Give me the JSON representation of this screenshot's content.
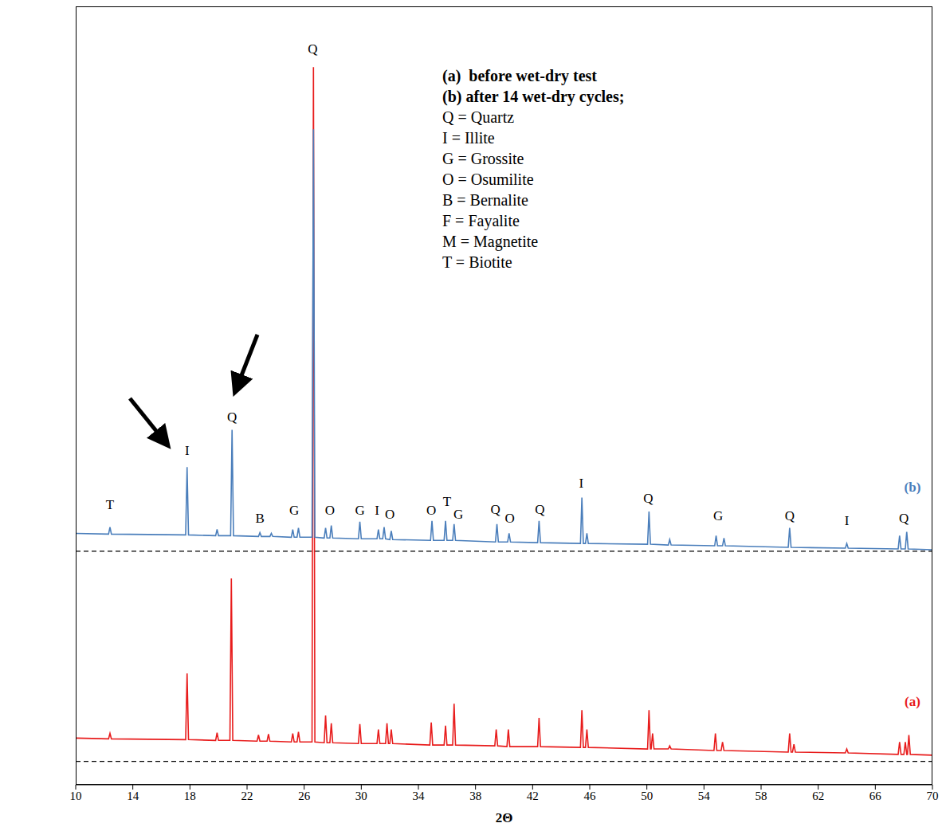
{
  "chart_data": {
    "type": "line",
    "x_label": "2Θ",
    "xlim": [
      10,
      70
    ],
    "xticks": [
      10,
      14,
      18,
      22,
      26,
      30,
      34,
      38,
      42,
      46,
      50,
      54,
      58,
      62,
      66,
      70
    ],
    "ylim": [
      0,
      100
    ],
    "tick_labels": "x",
    "grid": false,
    "key_text": [
      "(a)  before wet-dry test",
      "(b) after 14 wet-dry cycles;",
      "Q = Quartz",
      "I = Illite",
      "G = Grossite",
      "O = Osumilite",
      "B = Bernalite",
      "F = Fayalite",
      "M = Magnetite",
      "T = Biotite"
    ],
    "baselines": [
      3,
      30
    ],
    "series": [
      {
        "name": "(a)",
        "color": "#e81c1c",
        "label_at": [
          68.6,
          10.8
        ],
        "x": [
          10,
          12.3,
          12.4,
          12.5,
          17.7,
          17.8,
          17.9,
          19.8,
          19.9,
          20.0,
          20.8,
          20.9,
          21.0,
          22.7,
          22.8,
          22.9,
          23.4,
          23.5,
          23.6,
          25.1,
          25.2,
          25.3,
          25.5,
          25.6,
          25.7,
          26.55,
          26.65,
          26.75,
          27.4,
          27.5,
          27.6,
          27.8,
          27.9,
          28.0,
          29.8,
          29.9,
          30.0,
          31.1,
          31.2,
          31.3,
          31.7,
          31.8,
          31.9,
          32.0,
          32.1,
          32.2,
          34.8,
          34.9,
          35.0,
          35.8,
          35.9,
          36.0,
          36.4,
          36.5,
          36.6,
          39.35,
          39.45,
          39.55,
          40.2,
          40.3,
          40.4,
          42.35,
          42.45,
          42.55,
          45.35,
          45.45,
          45.55,
          45.7,
          45.8,
          45.9,
          50.05,
          50.15,
          50.25,
          50.3,
          50.4,
          50.5,
          51.5,
          51.6,
          51.7,
          54.7,
          54.8,
          54.9,
          55.2,
          55.3,
          55.4,
          59.9,
          60.0,
          60.1,
          60.2,
          60.3,
          60.4,
          63.9,
          64.0,
          64.1,
          67.6,
          67.7,
          67.8,
          68.0,
          68.1,
          68.2,
          68.25,
          68.35,
          68.45,
          70
        ],
        "values": [
          6.0,
          5.9,
          6.6,
          5.9,
          5.8,
          14.3,
          5.8,
          5.7,
          6.7,
          5.7,
          5.7,
          26.5,
          5.7,
          5.6,
          6.4,
          5.6,
          5.6,
          6.5,
          5.6,
          5.5,
          6.6,
          5.5,
          5.5,
          6.8,
          5.5,
          5.5,
          92.2,
          5.5,
          5.4,
          8.9,
          5.4,
          5.4,
          7.9,
          5.4,
          5.3,
          7.8,
          5.3,
          5.3,
          7.1,
          5.3,
          5.3,
          7.9,
          5.3,
          5.3,
          7.1,
          5.3,
          5.1,
          8.0,
          5.1,
          5.1,
          7.6,
          5.1,
          5.1,
          10.4,
          5.1,
          5.0,
          7.1,
          5.0,
          4.9,
          7.1,
          4.9,
          4.9,
          8.6,
          4.9,
          4.8,
          9.6,
          4.8,
          4.8,
          7.1,
          4.8,
          4.6,
          9.6,
          4.6,
          4.6,
          6.6,
          4.6,
          4.6,
          5.0,
          4.6,
          4.4,
          6.6,
          4.4,
          4.4,
          5.5,
          4.4,
          4.2,
          6.6,
          4.2,
          4.2,
          5.2,
          4.2,
          4.1,
          4.6,
          4.1,
          3.9,
          5.5,
          3.9,
          3.9,
          5.5,
          3.9,
          3.9,
          6.4,
          3.9,
          3.8
        ]
      },
      {
        "name": "(b)",
        "color": "#4a7ebb",
        "label_at": [
          68.6,
          38.3
        ],
        "x": [
          10,
          12.3,
          12.4,
          12.5,
          17.7,
          17.8,
          17.9,
          19.8,
          19.9,
          20.0,
          20.85,
          20.95,
          21.05,
          22.8,
          22.9,
          23.0,
          23.6,
          23.7,
          23.8,
          25.1,
          25.2,
          25.3,
          25.5,
          25.6,
          25.7,
          26.55,
          26.65,
          26.75,
          27.4,
          27.5,
          27.6,
          27.8,
          27.9,
          28.0,
          29.8,
          29.9,
          30.0,
          31.1,
          31.2,
          31.3,
          31.5,
          31.6,
          31.7,
          32.0,
          32.1,
          32.2,
          34.85,
          34.95,
          35.05,
          35.8,
          35.9,
          36.0,
          36.4,
          36.5,
          36.6,
          39.4,
          39.5,
          39.6,
          40.25,
          40.35,
          40.45,
          42.35,
          42.45,
          42.55,
          45.35,
          45.45,
          45.55,
          45.7,
          45.8,
          45.9,
          50.05,
          50.15,
          50.25,
          51.5,
          51.6,
          51.7,
          54.75,
          54.85,
          54.95,
          55.3,
          55.4,
          55.5,
          59.9,
          60.0,
          60.1,
          63.9,
          64.0,
          64.1,
          67.6,
          67.7,
          67.8,
          68.1,
          68.2,
          68.3,
          70
        ],
        "values": [
          32.3,
          32.2,
          33.1,
          32.2,
          32.1,
          40.8,
          32.1,
          32.0,
          32.8,
          32.0,
          32.0,
          45.6,
          32.0,
          31.9,
          32.4,
          31.9,
          31.9,
          32.3,
          31.9,
          31.8,
          32.8,
          31.8,
          31.8,
          33.0,
          31.8,
          31.8,
          84.2,
          31.8,
          31.7,
          33.0,
          31.7,
          31.7,
          33.3,
          31.7,
          31.6,
          33.8,
          31.6,
          31.6,
          32.8,
          31.6,
          31.6,
          33.1,
          31.6,
          31.5,
          32.6,
          31.5,
          31.4,
          33.9,
          31.4,
          31.4,
          33.9,
          31.4,
          31.4,
          33.5,
          31.4,
          31.2,
          33.5,
          31.2,
          31.2,
          32.3,
          31.2,
          31.1,
          33.9,
          31.1,
          31.0,
          36.9,
          31.0,
          31.0,
          32.3,
          31.0,
          30.9,
          35.1,
          30.9,
          30.8,
          31.5,
          30.8,
          30.7,
          32.0,
          30.7,
          30.7,
          31.7,
          30.7,
          30.5,
          33.0,
          30.5,
          30.4,
          31.0,
          30.4,
          30.3,
          32.0,
          30.3,
          30.3,
          32.5,
          30.3,
          30.2
        ]
      }
    ],
    "annotations": [
      {
        "text": "Q",
        "x": 26.6,
        "y": 94.6
      },
      {
        "text": "T",
        "x": 12.4,
        "y": 36.0
      },
      {
        "text": "I",
        "x": 17.8,
        "y": 43.0
      },
      {
        "text": "Q",
        "x": 20.95,
        "y": 47.3
      },
      {
        "text": "B",
        "x": 22.9,
        "y": 34.3
      },
      {
        "text": "G",
        "x": 25.3,
        "y": 35.3
      },
      {
        "text": "O",
        "x": 27.8,
        "y": 35.3
      },
      {
        "text": "G",
        "x": 29.9,
        "y": 35.3
      },
      {
        "text": "I",
        "x": 31.1,
        "y": 35.3
      },
      {
        "text": "O",
        "x": 32.0,
        "y": 34.8
      },
      {
        "text": "O",
        "x": 34.9,
        "y": 35.3
      },
      {
        "text": "T",
        "x": 36.0,
        "y": 36.4
      },
      {
        "text": "G",
        "x": 36.8,
        "y": 34.8
      },
      {
        "text": "Q",
        "x": 39.4,
        "y": 35.4
      },
      {
        "text": "O",
        "x": 40.4,
        "y": 34.3
      },
      {
        "text": "Q",
        "x": 42.5,
        "y": 35.4
      },
      {
        "text": "I",
        "x": 45.4,
        "y": 38.8
      },
      {
        "text": "Q",
        "x": 50.1,
        "y": 36.9
      },
      {
        "text": "G",
        "x": 55.0,
        "y": 34.6
      },
      {
        "text": "Q",
        "x": 60.0,
        "y": 34.6
      },
      {
        "text": "I",
        "x": 64.0,
        "y": 34.0
      },
      {
        "text": "Q",
        "x": 68.0,
        "y": 34.3
      }
    ]
  }
}
